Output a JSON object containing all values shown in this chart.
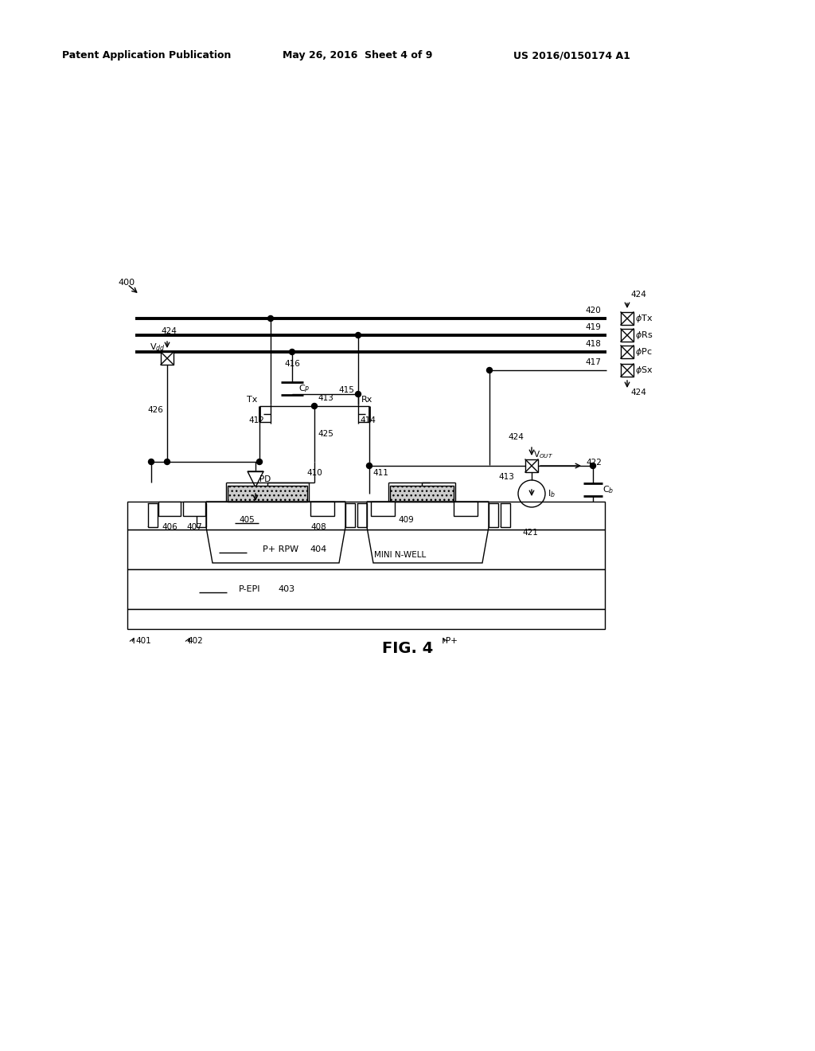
{
  "bg_color": "#ffffff",
  "header_left": "Patent Application Publication",
  "header_mid": "May 26, 2016  Sheet 4 of 9",
  "header_right": "US 2016/0150174 A1",
  "fig_label": "FIG. 4"
}
